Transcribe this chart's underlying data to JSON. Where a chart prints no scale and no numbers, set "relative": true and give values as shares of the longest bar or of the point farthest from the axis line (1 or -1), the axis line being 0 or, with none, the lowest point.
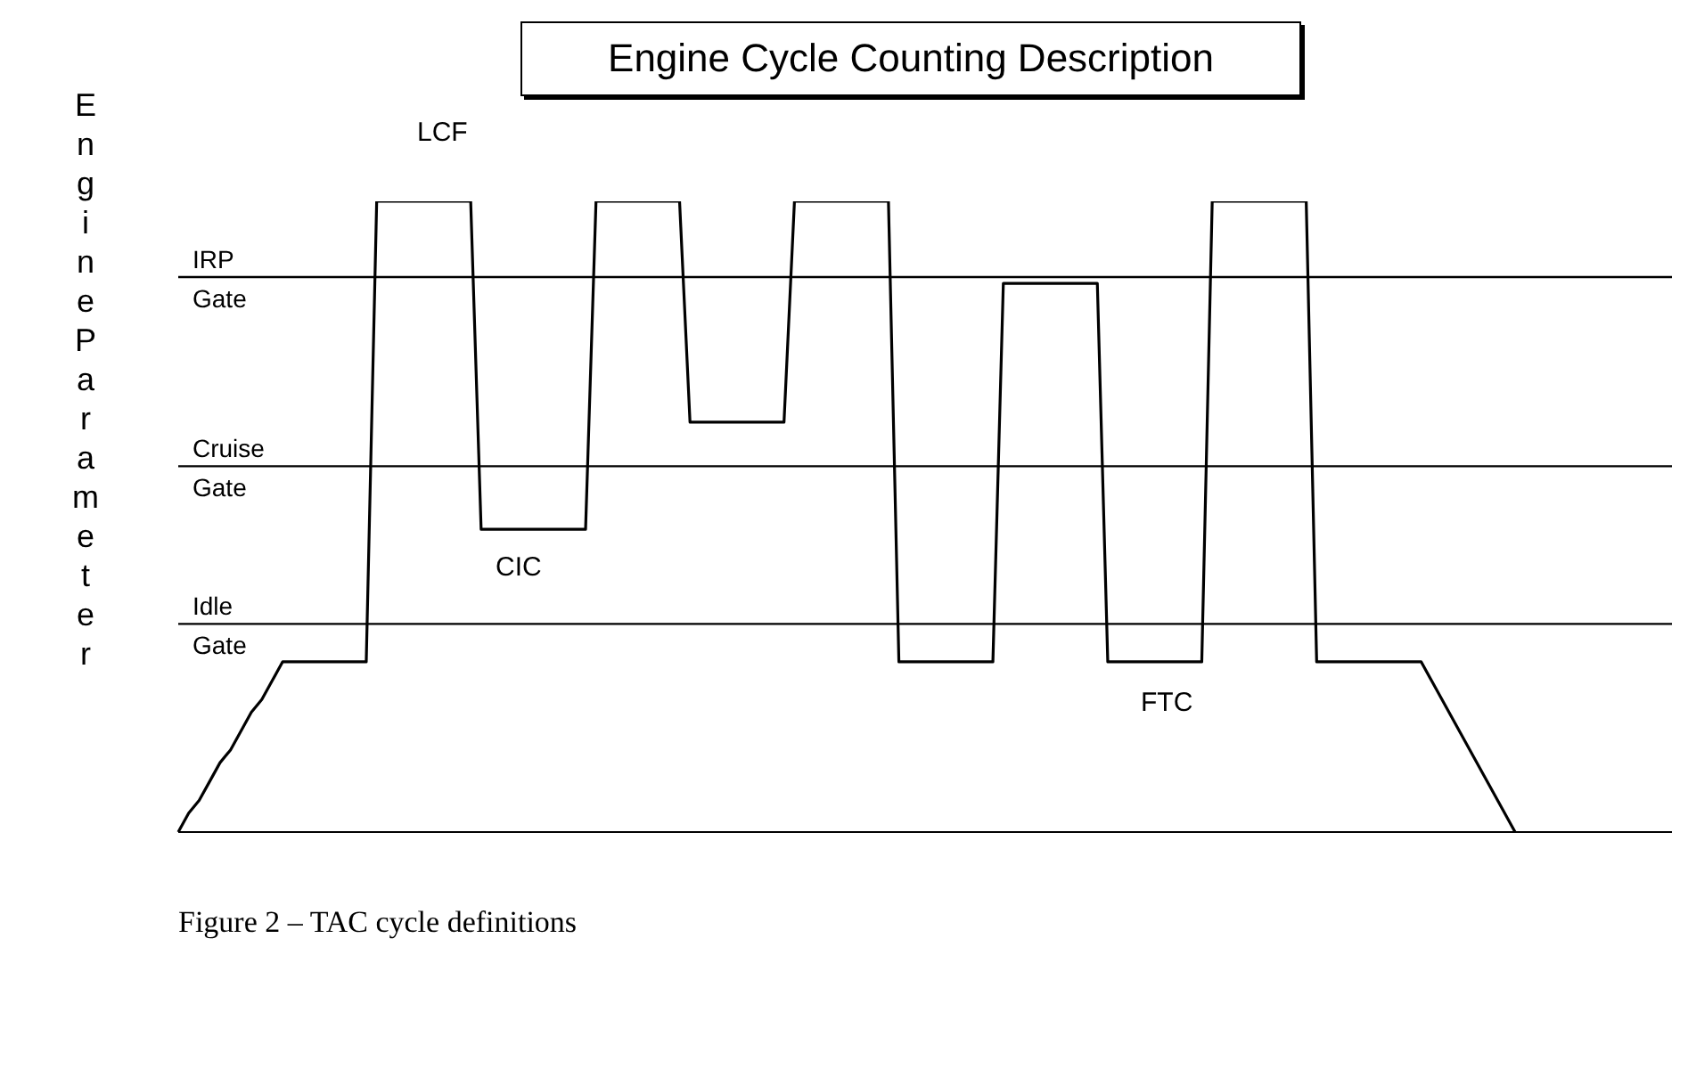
{
  "chart_data": {
    "type": "line",
    "title": "Engine Cycle Counting Description",
    "ylabel": "Engine Parameter",
    "relative": true,
    "categories": [
      null,
      null,
      null,
      null,
      null,
      null,
      null,
      null,
      null,
      null,
      null,
      null,
      null,
      null,
      null,
      null,
      null,
      null,
      null,
      null,
      null,
      null,
      null,
      null,
      null,
      null,
      null,
      null,
      null,
      null,
      null,
      null,
      null,
      null,
      null,
      null,
      null,
      null,
      null,
      null,
      null,
      null,
      null,
      null,
      null,
      null,
      null,
      null,
      null,
      null,
      null,
      null,
      null,
      null,
      null,
      null,
      null,
      null,
      null,
      null,
      null,
      null,
      null,
      null,
      null,
      null,
      null,
      null,
      null,
      null,
      null,
      null,
      null,
      null,
      null,
      null,
      null,
      null,
      null,
      null,
      null,
      null,
      null,
      null,
      null,
      null,
      null,
      null,
      null,
      null,
      null,
      null,
      null,
      null,
      null,
      null,
      null,
      null,
      null,
      null,
      null,
      null,
      null,
      null,
      null,
      null,
      null,
      null,
      null,
      null,
      null,
      null,
      null,
      null,
      null,
      null,
      null,
      null,
      null,
      null,
      null,
      null,
      null,
      null,
      null,
      null,
      null,
      null,
      null
    ],
    "series": [
      {
        "color": "#000000",
        "values": [
          0,
          0.03,
          0.05,
          0.08,
          0.11,
          0.13,
          0.16,
          0.19,
          0.21,
          0.24,
          0.27,
          0.27,
          0.27,
          0.27,
          0.27,
          0.27,
          0.27,
          0.27,
          0.27,
          1,
          1,
          1,
          1,
          1,
          1,
          1,
          1,
          1,
          1,
          0.48,
          0.48,
          0.48,
          0.48,
          0.48,
          0.48,
          0.48,
          0.48,
          0.48,
          0.48,
          0.48,
          1,
          1,
          1,
          1,
          1,
          1,
          1,
          1,
          1,
          0.65,
          0.65,
          0.65,
          0.65,
          0.65,
          0.65,
          0.65,
          0.65,
          0.65,
          0.65,
          1,
          1,
          1,
          1,
          1,
          1,
          1,
          1,
          1,
          1,
          0.27,
          0.27,
          0.27,
          0.27,
          0.27,
          0.27,
          0.27,
          0.27,
          0.27,
          0.27,
          0.87,
          0.87,
          0.87,
          0.87,
          0.87,
          0.87,
          0.87,
          0.87,
          0.87,
          0.87,
          0.27,
          0.27,
          0.27,
          0.27,
          0.27,
          0.27,
          0.27,
          0.27,
          0.27,
          0.27,
          1,
          1,
          1,
          1,
          1,
          1,
          1,
          1,
          1,
          1,
          0.27,
          0.27,
          0.27,
          0.27,
          0.27,
          0.27,
          0.27,
          0.27,
          0.27,
          0.27,
          0.27,
          0.24,
          0.21,
          0.18,
          0.15,
          0.12,
          0.09,
          0.06,
          0.03,
          0
        ]
      }
    ],
    "ref_lines": [
      {
        "axis": "y",
        "value": 0.88,
        "label": "IRP Gate",
        "color": "#000000"
      },
      {
        "axis": "y",
        "value": 0.58,
        "label": "Cruise Gate",
        "color": "#000000"
      },
      {
        "axis": "y",
        "value": 0.33,
        "label": "Idle Gate",
        "color": "#000000"
      }
    ],
    "annotations": [
      "LCF",
      "CIC",
      "FTC",
      "Figure 2 – TAC cycle definitions"
    ],
    "grid": false,
    "legend": false,
    "marker": "none",
    "line_style": "solid"
  }
}
